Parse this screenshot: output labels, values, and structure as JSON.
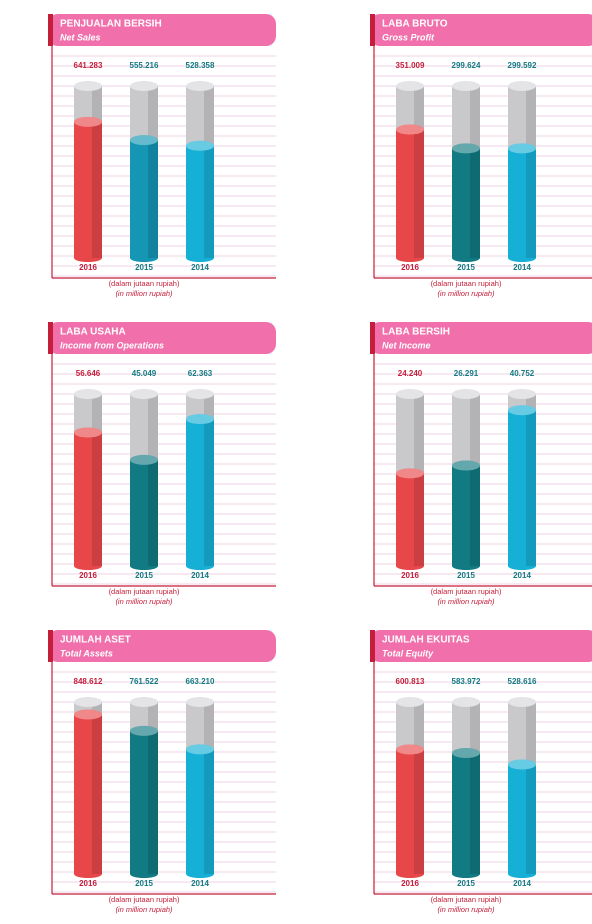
{
  "chart_data": [
    {
      "type": "bar",
      "title": "PENJUALAN BERSIH",
      "subtitle": "Net Sales",
      "categories": [
        "2016",
        "2015",
        "2014"
      ],
      "values": [
        641283,
        555216,
        528358
      ],
      "value_labels": [
        "641.283",
        "555.216",
        "528.358"
      ],
      "colors": [
        "#e8474a",
        "#1496b4",
        "#16b0d6"
      ],
      "ylim": [
        0,
        810000
      ],
      "annotations": [
        "(dalam jutaan rupiah)",
        "(in million rupiah)"
      ]
    },
    {
      "type": "bar",
      "title": "LABA BRUTO",
      "subtitle": "Gross Profit",
      "categories": [
        "2016",
        "2015",
        "2014"
      ],
      "values": [
        351009,
        299624,
        299592
      ],
      "value_labels": [
        "351.009",
        "299.624",
        "299.592"
      ],
      "colors": [
        "#e8474a",
        "#127a82",
        "#16b0d6"
      ],
      "ylim": [
        0,
        470000
      ],
      "annotations": [
        "(dalam jutaan rupiah)",
        "(in million rupiah)"
      ]
    },
    {
      "type": "bar",
      "title": "LABA USAHA",
      "subtitle": "Income from Operations",
      "categories": [
        "2016",
        "2015",
        "2014"
      ],
      "values": [
        56646,
        45049,
        62363
      ],
      "value_labels": [
        "56.646",
        "45.049",
        "62.363"
      ],
      "colors": [
        "#e8474a",
        "#127a82",
        "#16b0d6"
      ],
      "ylim": [
        0,
        73000
      ],
      "annotations": [
        "(dalam jutaan rupiah)",
        "(in million rupiah)"
      ]
    },
    {
      "type": "bar",
      "title": "LABA BERSIH",
      "subtitle": "Net Income",
      "categories": [
        "2016",
        "2015",
        "2014"
      ],
      "values": [
        24240,
        26291,
        40752
      ],
      "value_labels": [
        "24.240",
        "26.291",
        "40.752"
      ],
      "colors": [
        "#e8474a",
        "#127a82",
        "#16b0d6"
      ],
      "ylim": [
        0,
        45000
      ],
      "annotations": [
        "(dalam jutaan rupiah)",
        "(in million rupiah)"
      ]
    },
    {
      "type": "bar",
      "title": "JUMLAH ASET",
      "subtitle": "Total Assets",
      "categories": [
        "2016",
        "2015",
        "2014"
      ],
      "values": [
        848612,
        761522,
        663210
      ],
      "value_labels": [
        "848.612",
        "761.522",
        "663.210"
      ],
      "colors": [
        "#e8474a",
        "#127a82",
        "#16b0d6"
      ],
      "ylim": [
        0,
        915000
      ],
      "annotations": [
        "(dalam jutaan rupiah)",
        "(in million rupiah)"
      ]
    },
    {
      "type": "bar",
      "title": "JUMLAH EKUITAS",
      "subtitle": "Total Equity",
      "categories": [
        "2016",
        "2015",
        "2014"
      ],
      "values": [
        600813,
        583972,
        528616
      ],
      "value_labels": [
        "600.813",
        "583.972",
        "528.616"
      ],
      "colors": [
        "#e8474a",
        "#127a82",
        "#16b0d6"
      ],
      "ylim": [
        0,
        830000
      ],
      "annotations": [
        "(dalam jutaan rupiah)",
        "(in million rupiah)"
      ]
    }
  ]
}
